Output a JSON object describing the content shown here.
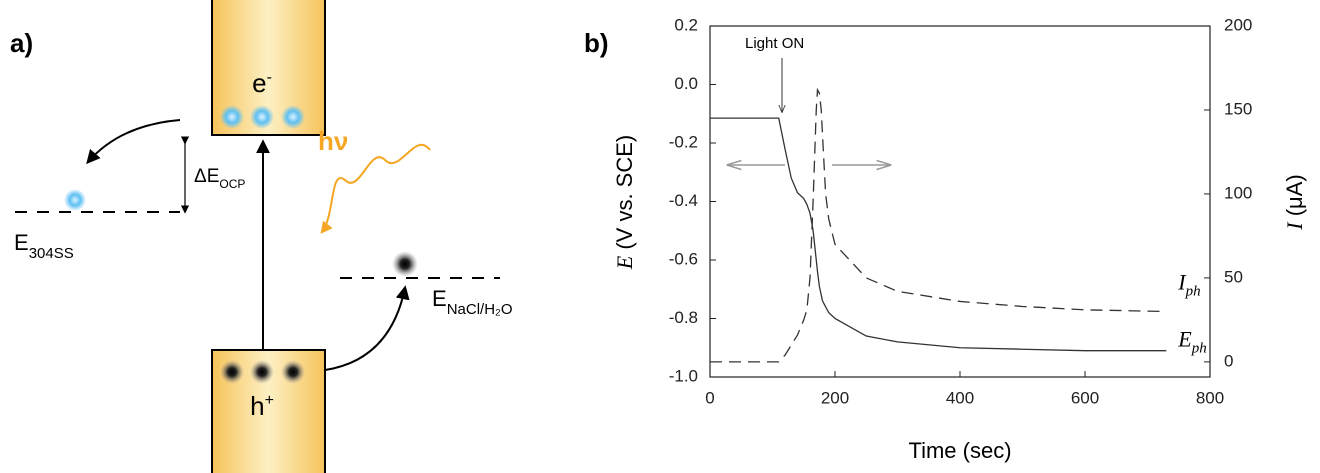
{
  "diagram": {
    "label": "a)",
    "cb_electron": {
      "main": "e",
      "sup": "-"
    },
    "vb_hole": {
      "main": "h",
      "sup": "+"
    },
    "photon": "hν",
    "delta": {
      "main": "ΔE",
      "sub": "OCP"
    },
    "steel": {
      "main": "E",
      "sub": "304SS"
    },
    "nacl": {
      "main": "E",
      "sub": "NaCl/H₂O"
    }
  },
  "chart_data": {
    "type": "line",
    "label": "b)",
    "xlabel": "Time (sec)",
    "ylabel": {
      "symbol": "E",
      "unit": "(V vs. SCE)"
    },
    "y2label": {
      "symbol": "I",
      "unit": "(μA)"
    },
    "annotation": "Light ON",
    "xlim": [
      0,
      800
    ],
    "xticks": [
      0,
      200,
      400,
      600,
      800
    ],
    "ylim": [
      -1,
      0.2
    ],
    "yticks": [
      {
        "value": -1,
        "label": "-1.0"
      },
      -0.8,
      -0.6,
      -0.4,
      -0.2,
      {
        "value": 0,
        "label": "0.0"
      },
      0.2
    ],
    "y2lim": [
      -9,
      200
    ],
    "y2ticks": [
      0,
      50,
      100,
      150,
      200
    ],
    "x": [
      0,
      110,
      120,
      130,
      140,
      150,
      155,
      160,
      165,
      170,
      172,
      175,
      178,
      180,
      185,
      190,
      200,
      250,
      300,
      400,
      500,
      600,
      730
    ],
    "series": [
      {
        "name": "E",
        "name_sub": "ph",
        "color": "#333333",
        "dash": false,
        "values": [
          -0.115,
          -0.115,
          -0.22,
          -0.32,
          -0.37,
          -0.39,
          -0.41,
          -0.44,
          -0.5,
          -0.6,
          -0.64,
          -0.69,
          -0.72,
          -0.74,
          -0.76,
          -0.78,
          -0.8,
          -0.86,
          -0.88,
          -0.9,
          -0.905,
          -0.91,
          -0.91
        ]
      },
      {
        "name": "I",
        "name_sub": "ph",
        "axis": "y2",
        "color": "#333333",
        "dash": true,
        "values": [
          0,
          0,
          4,
          10,
          16,
          25,
          31,
          50,
          96,
          150,
          162,
          160,
          150,
          135,
          100,
          85,
          70,
          50,
          42,
          36,
          33,
          31,
          30
        ]
      }
    ]
  }
}
